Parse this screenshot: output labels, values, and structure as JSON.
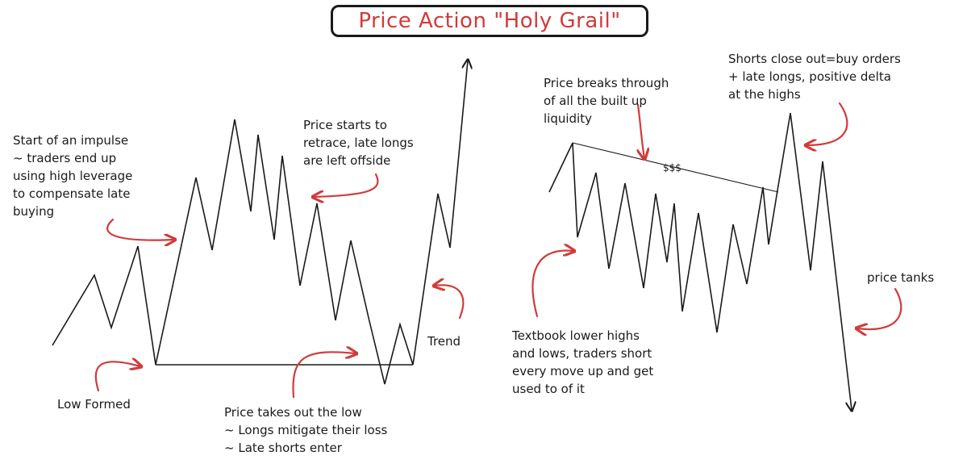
{
  "title": "Price Action \"Holy Grail\"",
  "colors": {
    "ink": "#1a1a1a",
    "accent": "#d23a3a",
    "background": "#ffffff"
  },
  "annotations": {
    "impulse": "Start of an impulse\n~ traders end up\nusing high leverage\nto compensate late\nbuying",
    "retrace": "Price starts to\nretrace, late longs\nare left offside",
    "low_formed": "Low Formed",
    "takes_out_low": "Price takes out the low\n~ Longs mitigate their loss\n~ Late shorts enter",
    "trend": "Trend",
    "breaks_through": "Price breaks through\nof all the built up\nliquidity",
    "shorts_close": "Shorts close out=buy orders\n+ late longs, positive delta\nat the highs",
    "liquidity_label": "$$$",
    "textbook": "Textbook lower highs\nand lows, traders short\nevery move up and get\nused to of it",
    "price_tanks": "price tanks"
  }
}
